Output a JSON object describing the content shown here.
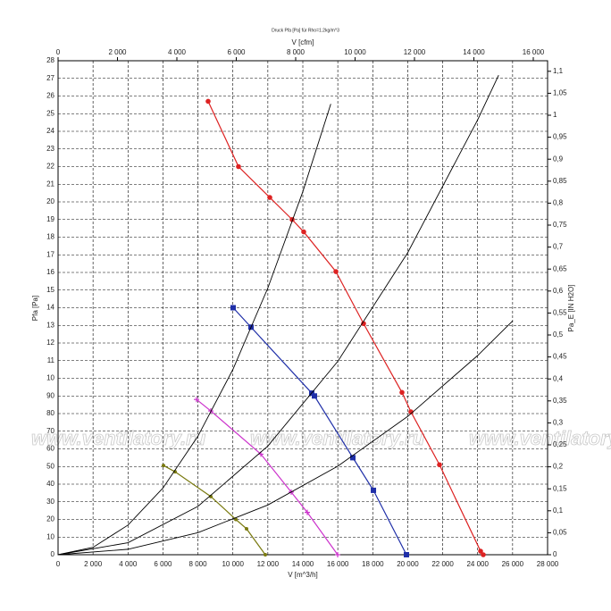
{
  "chart_data": {
    "type": "line",
    "title": "Druck Pfa [Pa] für Rho=1.2kg/m^3",
    "xlabel": "V [m^3/h]",
    "ylabel": "Pfa [Pa]",
    "x2label": "V [cfm]",
    "y2label": "Pa_E [IN H2O]",
    "watermark": "www.ventilatory.ru",
    "grid": true,
    "xlim": [
      0,
      28000
    ],
    "xticks": [
      0,
      {
        "value": 2000,
        "label": "2 000"
      },
      {
        "value": 4000,
        "label": "4 000"
      },
      {
        "value": 6000,
        "label": "6 000"
      },
      {
        "value": 8000,
        "label": "8 000"
      },
      {
        "value": 10000,
        "label": "10 000"
      },
      {
        "value": 12000,
        "label": "12 000"
      },
      {
        "value": 14000,
        "label": "14 000"
      },
      {
        "value": 16000,
        "label": "16 000"
      },
      {
        "value": 18000,
        "label": "18 000"
      },
      {
        "value": 20000,
        "label": "20 000"
      },
      {
        "value": 22000,
        "label": "22 000"
      },
      {
        "value": 24000,
        "label": "24 000"
      },
      {
        "value": 26000,
        "label": "26 000"
      },
      {
        "value": 28000,
        "label": "28 000"
      }
    ],
    "x2lim": [
      0,
      16481
    ],
    "x2ticks": [
      0,
      {
        "value": 2000,
        "label": "2 000"
      },
      {
        "value": 4000,
        "label": "4 000"
      },
      {
        "value": 6000,
        "label": "6 000"
      },
      {
        "value": 8000,
        "label": "8 000"
      },
      {
        "value": 10000,
        "label": "10 000"
      },
      {
        "value": 12000,
        "label": "12 000"
      },
      {
        "value": 14000,
        "label": "14 000"
      },
      {
        "value": 16000,
        "label": "16 000"
      }
    ],
    "ylim": [
      0,
      280
    ],
    "yticks": [
      0,
      10,
      20,
      30,
      40,
      50,
      60,
      70,
      80,
      90,
      {
        "value": 100,
        "label": "10"
      },
      {
        "value": 110,
        "label": "11"
      },
      {
        "value": 120,
        "label": "12"
      },
      {
        "value": 130,
        "label": "13"
      },
      {
        "value": 140,
        "label": "14"
      },
      {
        "value": 150,
        "label": "15"
      },
      {
        "value": 160,
        "label": "16"
      },
      {
        "value": 170,
        "label": "17"
      },
      {
        "value": 180,
        "label": "18"
      },
      {
        "value": 190,
        "label": "19"
      },
      {
        "value": 200,
        "label": "20"
      },
      {
        "value": 210,
        "label": "21"
      },
      {
        "value": 220,
        "label": "22"
      },
      {
        "value": 230,
        "label": "23"
      },
      {
        "value": 240,
        "label": "24"
      },
      {
        "value": 250,
        "label": "25"
      },
      {
        "value": 260,
        "label": "26"
      },
      {
        "value": 270,
        "label": "27"
      },
      {
        "value": 280,
        "label": "28"
      }
    ],
    "y2lim": [
      0,
      1.124
    ],
    "y2ticks": [
      0,
      {
        "value": 0.05,
        "label": "0,05"
      },
      {
        "value": 0.1,
        "label": "0,1"
      },
      {
        "value": 0.15,
        "label": "0,15"
      },
      {
        "value": 0.2,
        "label": "0,2"
      },
      {
        "value": 0.25,
        "label": "0,25"
      },
      {
        "value": 0.3,
        "label": "0,3"
      },
      {
        "value": 0.35,
        "label": "0,35"
      },
      {
        "value": 0.4,
        "label": "0,4"
      },
      {
        "value": 0.45,
        "label": "0,45"
      },
      {
        "value": 0.5,
        "label": "0,5"
      },
      {
        "value": 0.55,
        "label": "0,55"
      },
      {
        "value": 0.6,
        "label": "0,6"
      },
      {
        "value": 0.65,
        "label": "0,65"
      },
      {
        "value": 0.7,
        "label": "0,7"
      },
      {
        "value": 0.75,
        "label": "0,75"
      },
      {
        "value": 0.8,
        "label": "0,8"
      },
      {
        "value": 0.85,
        "label": "0,85"
      },
      {
        "value": 0.9,
        "label": "0,9"
      },
      {
        "value": 0.95,
        "label": "0,95"
      },
      {
        "value": 1,
        "label": "1"
      },
      {
        "value": 1.05,
        "label": "1,05"
      },
      {
        "value": 1.1,
        "label": "1,1"
      }
    ],
    "series": [
      {
        "color": "#dd2222",
        "marker": "circle",
        "x": [
          8584,
          10321,
          12110,
          13387,
          14051,
          15891,
          17474,
          19672,
          20183,
          21818,
          24168,
          24321
        ],
        "values": [
          257,
          220,
          202.5,
          190,
          183,
          160.5,
          131,
          92,
          81,
          51,
          2,
          0
        ]
      },
      {
        "color": "#1f2fa8",
        "marker": "square",
        "x": [
          10015,
          11036,
          14511,
          14664,
          16862,
          18038,
          19928
        ],
        "values": [
          140,
          129,
          91.6,
          90,
          55,
          36.5,
          0
        ]
      },
      {
        "color": "#cc33cc",
        "marker": "cross",
        "x": [
          7920,
          8737,
          11600,
          13337,
          14256,
          15993
        ],
        "values": [
          88,
          81.5,
          57,
          35.5,
          24,
          0
        ]
      },
      {
        "color": "#7a7a10",
        "marker": "dot",
        "x": [
          6029,
          6693,
          8737,
          10168,
          10781,
          11854
        ],
        "values": [
          50.6,
          47,
          33,
          20,
          14.7,
          0
        ]
      },
      {
        "color": "#000000",
        "marker": "none",
        "x": [
          0,
          2000,
          4000,
          6000,
          8000,
          10000,
          12000,
          14000,
          15600
        ],
        "values": [
          0,
          4.2,
          16.8,
          37.8,
          67.2,
          105,
          151.2,
          205.8,
          255.5
        ]
      },
      {
        "color": "#000000",
        "marker": "none",
        "x": [
          0,
          4000,
          8000,
          12000,
          16000,
          20000,
          24000,
          25200
        ],
        "values": [
          0,
          6.8,
          27.4,
          61.6,
          109.6,
          171.2,
          246.5,
          271.8
        ]
      },
      {
        "color": "#000000",
        "marker": "none",
        "x": [
          0,
          4000,
          8000,
          12000,
          16000,
          20000,
          24000,
          26000
        ],
        "values": [
          0,
          3.1,
          12.5,
          28.2,
          50.2,
          78.4,
          112.9,
          132.5
        ]
      }
    ]
  }
}
